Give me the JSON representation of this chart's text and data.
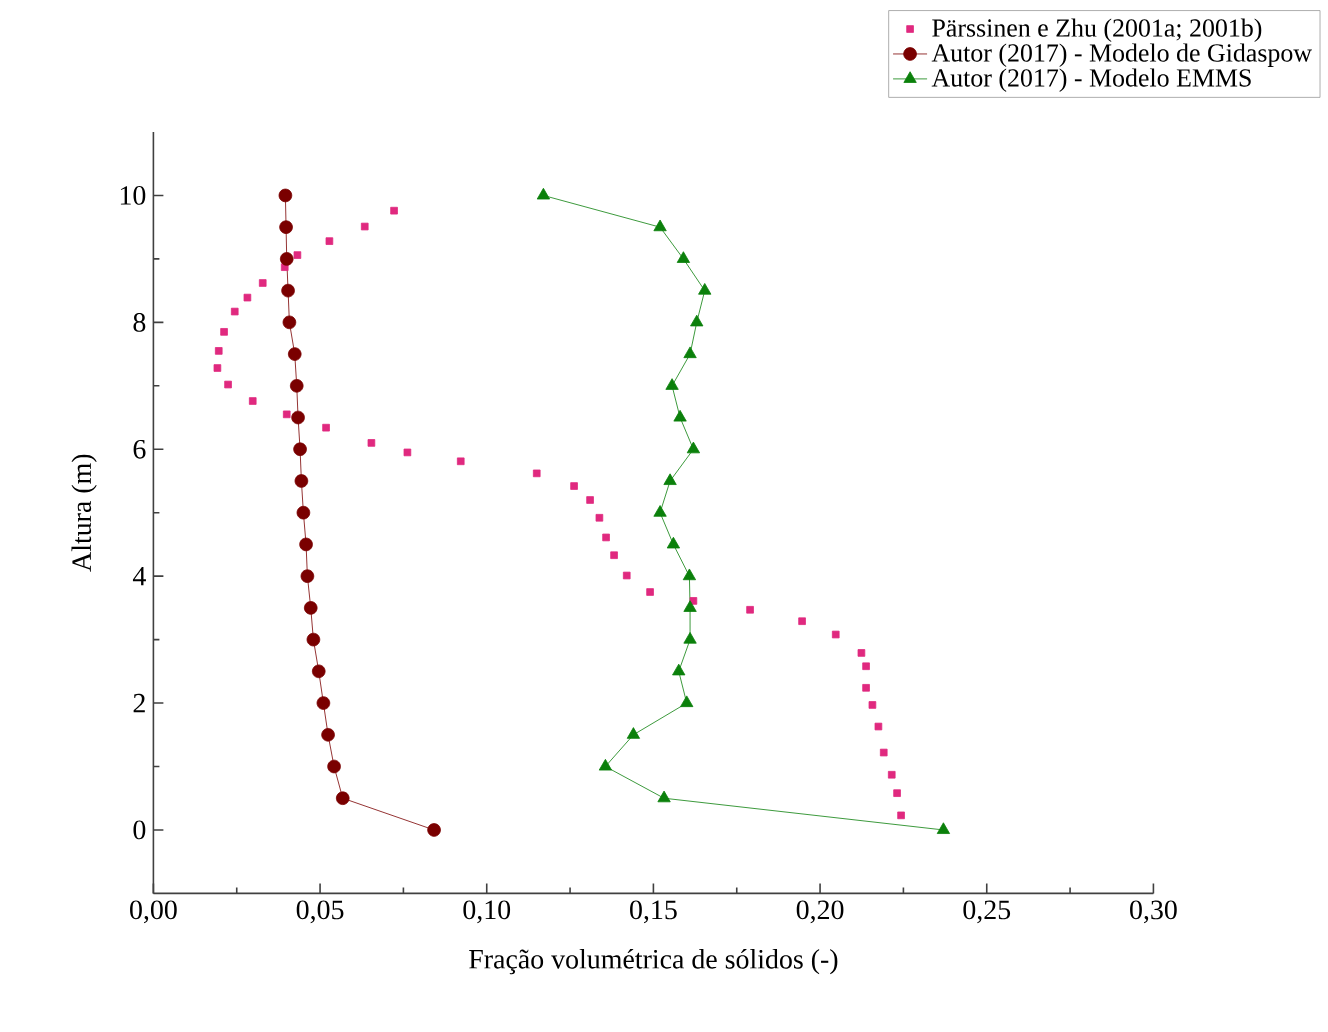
{
  "chart_data": {
    "type": "line",
    "xlabel": "Fração volumétrica de sólidos (-)",
    "ylabel": "Altura (m)",
    "xlim": [
      0,
      0.3
    ],
    "ylim": [
      -1,
      11
    ],
    "xticks": [
      {
        "value": 0,
        "label": "0,00"
      },
      {
        "value": 0.05,
        "label": "0,05"
      },
      {
        "value": 0.1,
        "label": "0,10"
      },
      {
        "value": 0.15,
        "label": "0,15"
      },
      {
        "value": 0.2,
        "label": "0,20"
      },
      {
        "value": 0.25,
        "label": "0,25"
      },
      {
        "value": 0.3,
        "label": "0,30"
      }
    ],
    "yticks": [
      0,
      2,
      4,
      6,
      8,
      10
    ],
    "legend": "top right",
    "series": [
      {
        "name": "Pärssinen e Zhu (2001a; 2001b)",
        "type": "scatter",
        "marker": "square",
        "color": "#e0297f",
        "x": [
          0.0722,
          0.0634,
          0.0528,
          0.0432,
          0.0394,
          0.0328,
          0.0282,
          0.0244,
          0.0212,
          0.0196,
          0.0192,
          0.0224,
          0.0298,
          0.04,
          0.0518,
          0.0654,
          0.0762,
          0.0922,
          0.115,
          0.1262,
          0.131,
          0.1338,
          0.1358,
          0.1382,
          0.142,
          0.149,
          0.162,
          0.179,
          0.1946,
          0.2047,
          0.2124,
          0.2138,
          0.2138,
          0.2157,
          0.2175,
          0.2191,
          0.2215,
          0.2231,
          0.2243
        ],
        "values": [
          9.76,
          9.51,
          9.28,
          9.06,
          8.87,
          8.62,
          8.39,
          8.17,
          7.85,
          7.55,
          7.28,
          7.02,
          6.76,
          6.55,
          6.34,
          6.1,
          5.95,
          5.81,
          5.62,
          5.42,
          5.2,
          4.92,
          4.61,
          4.33,
          4.01,
          3.75,
          3.61,
          3.47,
          3.29,
          3.08,
          2.79,
          2.58,
          2.24,
          1.97,
          1.63,
          1.22,
          0.87,
          0.58,
          0.23
        ]
      },
      {
        "name": "Autor (2017) - Modelo de Gidaspow",
        "marker": "circle",
        "color": "#7a0000",
        "x": [
          0.0842,
          0.0568,
          0.0542,
          0.0524,
          0.051,
          0.0496,
          0.048,
          0.0472,
          0.0462,
          0.0458,
          0.045,
          0.0444,
          0.044,
          0.0434,
          0.043,
          0.0424,
          0.0408,
          0.0404,
          0.04,
          0.0398,
          0.0396
        ],
        "values": [
          0,
          0.5,
          1,
          1.5,
          2,
          2.5,
          3,
          3.5,
          4,
          4.5,
          5,
          5.5,
          6,
          6.5,
          7,
          7.5,
          8,
          8.5,
          9,
          9.5,
          10
        ]
      },
      {
        "name": "Autor (2017) - Modelo EMMS",
        "marker": "triangle",
        "color": "#0b800b",
        "x": [
          0.237,
          0.1532,
          0.1356,
          0.144,
          0.16,
          0.1576,
          0.161,
          0.161,
          0.1608,
          0.156,
          0.152,
          0.155,
          0.162,
          0.158,
          0.1556,
          0.161,
          0.163,
          0.1654,
          0.159,
          0.152,
          0.117
        ],
        "values": [
          0,
          0.5,
          1,
          1.5,
          2,
          2.5,
          3,
          3.5,
          4,
          4.5,
          5,
          5.5,
          6,
          6.5,
          7,
          7.5,
          8,
          8.5,
          9,
          9.5,
          10
        ]
      }
    ]
  }
}
